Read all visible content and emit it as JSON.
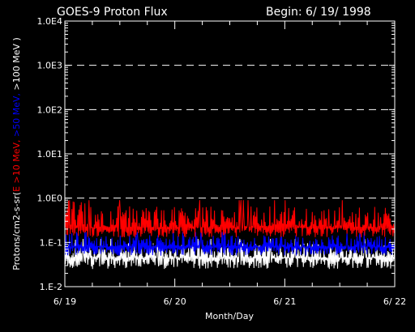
{
  "chart_data": {
    "type": "line",
    "title": "GOES-9 Proton Flux",
    "subtitle": "Begin: 6/ 19/ 1998",
    "xlabel": "Month/Day",
    "ylabel_parts": [
      {
        "text": "Protons/cm2-s-sr(",
        "color": "#ffffff"
      },
      {
        "text": "E >10 MeV,",
        "color": "#ff0000"
      },
      {
        "text": " >50 MeV,",
        "color": "#0000ff"
      },
      {
        "text": " >100 MeV )",
        "color": "#ffffff"
      }
    ],
    "y_scale": "log",
    "ylim": [
      0.01,
      10000
    ],
    "y_ticks": [
      {
        "value": 0.01,
        "label": "1.E-2"
      },
      {
        "value": 0.1,
        "label": "1.E-1"
      },
      {
        "value": 1,
        "label": "1.0E0"
      },
      {
        "value": 10,
        "label": "1.0E1"
      },
      {
        "value": 100,
        "label": "1.0E2"
      },
      {
        "value": 1000,
        "label": "1.0E3"
      },
      {
        "value": 10000,
        "label": "1.0E4"
      }
    ],
    "dashed_grid_at": [
      1,
      10,
      100,
      1000
    ],
    "xlim": [
      0,
      3
    ],
    "x_ticks": [
      {
        "value": 0,
        "label": "6/ 19"
      },
      {
        "value": 1,
        "label": "6/ 20"
      },
      {
        "value": 2,
        "label": "6/ 21"
      },
      {
        "value": 3,
        "label": "6/ 22"
      }
    ],
    "series": [
      {
        "name": ">100 MeV",
        "color": "#ffffff",
        "median": 0.045,
        "low": 0.025,
        "high": 0.12
      },
      {
        "name": ">50 MeV",
        "color": "#0000ff",
        "median": 0.08,
        "low": 0.05,
        "high": 0.17
      },
      {
        "name": ">10 MeV",
        "color": "#ff0000",
        "median": 0.22,
        "low": 0.13,
        "high": 0.9
      }
    ]
  }
}
